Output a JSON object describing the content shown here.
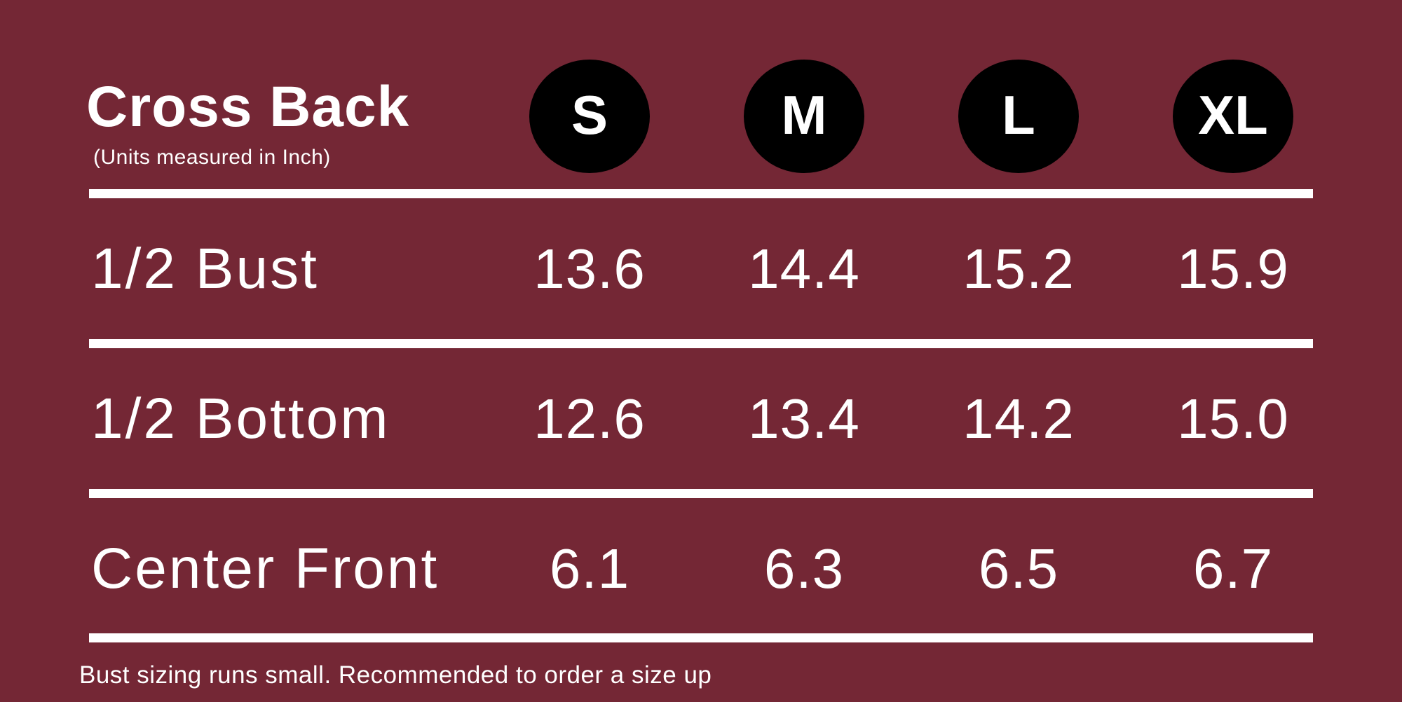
{
  "colors": {
    "background": "#742735",
    "badge": "#000000",
    "text": "#ffffff",
    "divider": "#ffffff"
  },
  "header": {
    "title": "Cross Back",
    "subtitle": "(Units measured in Inch)",
    "sizes": [
      "S",
      "M",
      "L",
      "XL"
    ]
  },
  "table": {
    "rows": [
      {
        "label": "1/2 Bust",
        "values": [
          "13.6",
          "14.4",
          "15.2",
          "15.9"
        ]
      },
      {
        "label": "1/2 Bottom",
        "values": [
          "12.6",
          "13.4",
          "14.2",
          "15.0"
        ]
      },
      {
        "label": "Center Front",
        "values": [
          "6.1",
          "6.3",
          "6.5",
          "6.7"
        ]
      }
    ]
  },
  "footer": {
    "note": "Bust sizing runs small. Recommended to order a size up"
  },
  "chart_data": {
    "type": "table",
    "title": "Cross Back",
    "subtitle": "(Units measured in Inch)",
    "units": "inch",
    "columns": [
      "S",
      "M",
      "L",
      "XL"
    ],
    "rows": [
      {
        "label": "1/2 Bust",
        "values": [
          13.6,
          14.4,
          15.2,
          15.9
        ]
      },
      {
        "label": "1/2 Bottom",
        "values": [
          12.6,
          13.4,
          14.2,
          15.0
        ]
      },
      {
        "label": "Center Front",
        "values": [
          6.1,
          6.3,
          6.5,
          6.7
        ]
      }
    ],
    "note": "Bust sizing runs small. Recommended to order a size up"
  }
}
